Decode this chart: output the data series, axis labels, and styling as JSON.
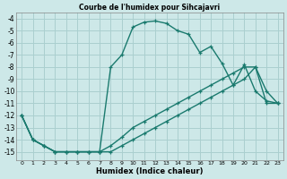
{
  "title": "Courbe de l'humidex pour Sihcajavri",
  "xlabel": "Humidex (Indice chaleur)",
  "background_color": "#cde8e8",
  "grid_color": "#aacfcf",
  "line_color": "#1a7a6e",
  "xlim": [
    -0.5,
    23.5
  ],
  "ylim": [
    -15.7,
    -3.5
  ],
  "xticks": [
    0,
    1,
    2,
    3,
    4,
    5,
    6,
    7,
    8,
    9,
    10,
    11,
    12,
    13,
    14,
    15,
    16,
    17,
    18,
    19,
    20,
    21,
    22,
    23
  ],
  "yticks": [
    -4,
    -5,
    -6,
    -7,
    -8,
    -9,
    -10,
    -11,
    -12,
    -13,
    -14,
    -15
  ],
  "line1_x": [
    0,
    1,
    2,
    3,
    4,
    5,
    6,
    7,
    8,
    9,
    10,
    11,
    12,
    13,
    14,
    15,
    16,
    17,
    18,
    19,
    20,
    21,
    22,
    23
  ],
  "line1_y": [
    -12,
    -14,
    -14.5,
    -15,
    -15,
    -15,
    -15,
    -15,
    -8,
    -7,
    -4.7,
    -4.3,
    -4.2,
    -4.4,
    -5,
    -5.3,
    -6.8,
    -6.3,
    -7.7,
    -9.5,
    -7.8,
    -10,
    -10.8,
    -11
  ],
  "line2_x": [
    0,
    1,
    2,
    3,
    4,
    5,
    6,
    7,
    8,
    9,
    10,
    11,
    12,
    13,
    14,
    15,
    16,
    17,
    18,
    19,
    20,
    21,
    22,
    23
  ],
  "line2_y": [
    -12,
    -14,
    -14.5,
    -15,
    -15,
    -15,
    -15,
    -15,
    -14.5,
    -13.8,
    -13,
    -12.5,
    -12,
    -11.5,
    -11,
    -10.5,
    -10,
    -9.5,
    -9.0,
    -8.5,
    -8.0,
    -8.0,
    -10.0,
    -11.0
  ],
  "line3_x": [
    0,
    1,
    2,
    3,
    4,
    5,
    6,
    7,
    8,
    9,
    10,
    11,
    12,
    13,
    14,
    15,
    16,
    17,
    18,
    19,
    20,
    21,
    22,
    23
  ],
  "line3_y": [
    -12,
    -14,
    -14.5,
    -15,
    -15,
    -15,
    -15,
    -15,
    -15,
    -14.5,
    -14,
    -13.5,
    -13,
    -12.5,
    -12,
    -11.5,
    -11,
    -10.5,
    -10,
    -9.5,
    -9,
    -8,
    -11,
    -11
  ]
}
